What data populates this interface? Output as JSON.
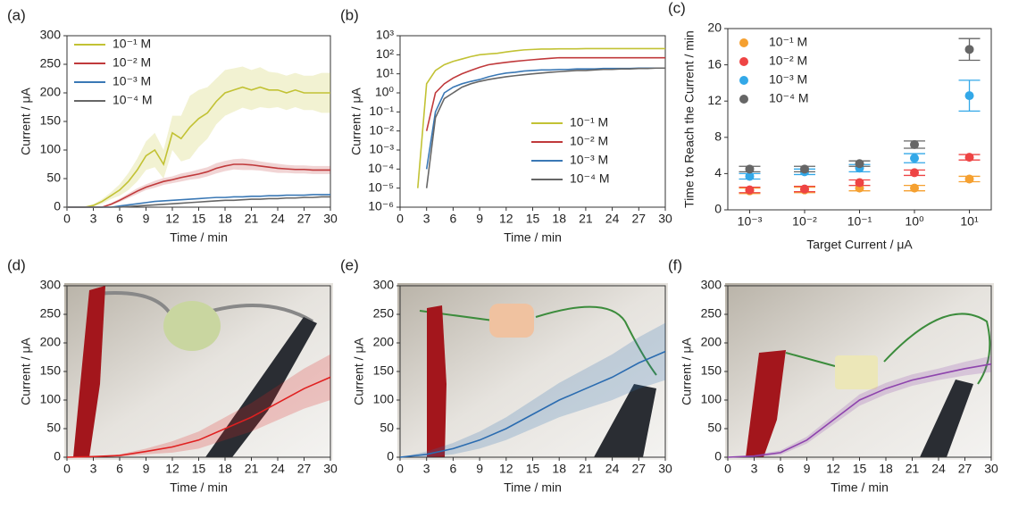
{
  "chart_data": [
    {
      "type": "line",
      "panel": "(a)",
      "xlabel": "Time / min",
      "ylabel": "Current / μA",
      "legend": "upper left",
      "xlim": [
        0,
        30
      ],
      "xticks": [
        0,
        3,
        6,
        9,
        12,
        15,
        18,
        21,
        24,
        27,
        30
      ],
      "ylim": [
        0,
        300
      ],
      "yticks": [
        0,
        50,
        100,
        150,
        200,
        250,
        300
      ],
      "x": [
        0,
        1,
        2,
        3,
        4,
        5,
        6,
        7,
        8,
        9,
        10,
        11,
        12,
        13,
        14,
        15,
        16,
        17,
        18,
        19,
        20,
        21,
        22,
        23,
        24,
        25,
        26,
        27,
        28,
        29,
        30
      ],
      "series": [
        {
          "name": "10⁻¹ M",
          "color": "#c2c234",
          "values": [
            0,
            0,
            0,
            3,
            10,
            20,
            30,
            45,
            65,
            90,
            100,
            75,
            130,
            120,
            140,
            155,
            165,
            185,
            200,
            205,
            210,
            205,
            210,
            205,
            205,
            200,
            205,
            200,
            200,
            200,
            200
          ],
          "errors": [
            0,
            0,
            0,
            2,
            4,
            6,
            10,
            15,
            20,
            25,
            30,
            25,
            30,
            40,
            55,
            50,
            45,
            40,
            40,
            38,
            36,
            35,
            35,
            32,
            30,
            30,
            30,
            30,
            30,
            35,
            35
          ]
        },
        {
          "name": "10⁻² M",
          "color": "#c0393b",
          "values": [
            0,
            0,
            0,
            0,
            0,
            5,
            12,
            20,
            28,
            35,
            40,
            45,
            48,
            52,
            55,
            58,
            62,
            68,
            72,
            75,
            75,
            74,
            72,
            70,
            68,
            67,
            66,
            66,
            65,
            65,
            65
          ],
          "errors": [
            0,
            0,
            0,
            0,
            0,
            2,
            3,
            4,
            5,
            5,
            6,
            6,
            6,
            7,
            7,
            8,
            8,
            9,
            9,
            9,
            10,
            9,
            8,
            8,
            8,
            7,
            7,
            7,
            7,
            7,
            7
          ]
        },
        {
          "name": "10⁻³ M",
          "color": "#3a78b5",
          "values": [
            0,
            0,
            0,
            0,
            0,
            0,
            2,
            4,
            6,
            8,
            10,
            11,
            12,
            13,
            14,
            15,
            16,
            17,
            17,
            18,
            18,
            19,
            19,
            20,
            20,
            21,
            21,
            21,
            22,
            22,
            22
          ]
        },
        {
          "name": "10⁻⁴ M",
          "color": "#666666",
          "values": [
            0,
            0,
            0,
            0,
            0,
            0,
            0,
            1,
            2,
            3,
            4,
            5,
            6,
            7,
            8,
            9,
            10,
            11,
            12,
            12,
            13,
            14,
            14,
            15,
            15,
            16,
            16,
            17,
            17,
            18,
            18
          ]
        }
      ]
    },
    {
      "type": "line",
      "panel": "(b)",
      "xlabel": "Time / min",
      "ylabel": "Current / μA",
      "legend": "lower right",
      "ylog": true,
      "xlim": [
        0,
        30
      ],
      "xticks": [
        0,
        3,
        6,
        9,
        12,
        15,
        18,
        21,
        24,
        27,
        30
      ],
      "ylim": [
        1e-06,
        1000
      ],
      "yticks": [
        {
          "value": 1e-06,
          "label": "10⁻⁶"
        },
        {
          "value": 1e-05,
          "label": "10⁻⁵"
        },
        {
          "value": 0.0001,
          "label": "10⁻⁴"
        },
        {
          "value": 0.001,
          "label": "10⁻³"
        },
        {
          "value": 0.01,
          "label": "10⁻²"
        },
        {
          "value": 0.1,
          "label": "10⁻¹"
        },
        {
          "value": 1,
          "label": "10⁰"
        },
        {
          "value": 10,
          "label": "10¹"
        },
        {
          "value": 100,
          "label": "10²"
        },
        {
          "value": 1000,
          "label": "10³"
        }
      ],
      "x": [
        0,
        1,
        2,
        3,
        4,
        5,
        6,
        7,
        8,
        9,
        10,
        11,
        12,
        13,
        14,
        15,
        16,
        17,
        18,
        19,
        20,
        21,
        22,
        23,
        24,
        25,
        26,
        27,
        28,
        29,
        30
      ],
      "series": [
        {
          "name": "10⁻¹ M",
          "color": "#c2c234",
          "values": [
            null,
            null,
            1e-05,
            3,
            15,
            30,
            45,
            60,
            80,
            100,
            110,
            120,
            140,
            160,
            180,
            190,
            200,
            200,
            205,
            205,
            205,
            210,
            210,
            210,
            210,
            210,
            210,
            210,
            210,
            210,
            210
          ]
        },
        {
          "name": "10⁻² M",
          "color": "#c0393b",
          "values": [
            null,
            null,
            null,
            0.01,
            1,
            3,
            6,
            10,
            15,
            22,
            30,
            35,
            40,
            45,
            50,
            55,
            60,
            65,
            70,
            70,
            70,
            70,
            70,
            70,
            70,
            70,
            70,
            70,
            70,
            70,
            70
          ]
        },
        {
          "name": "10⁻³ M",
          "color": "#3a78b5",
          "values": [
            null,
            null,
            null,
            0.0001,
            0.1,
            1,
            2,
            3,
            4,
            5,
            7,
            9,
            11,
            12,
            14,
            15,
            16,
            16,
            17,
            17,
            18,
            18,
            18,
            19,
            19,
            19,
            19,
            20,
            20,
            20,
            20
          ]
        },
        {
          "name": "10⁻⁴ M",
          "color": "#666666",
          "values": [
            null,
            null,
            null,
            1e-05,
            0.05,
            0.5,
            1,
            2,
            3,
            4,
            5,
            6,
            7,
            8,
            9,
            10,
            11,
            12,
            13,
            14,
            15,
            15,
            16,
            17,
            17,
            18,
            18,
            19,
            19,
            20,
            20
          ]
        }
      ]
    },
    {
      "type": "scatter",
      "panel": "(c)",
      "xlabel": "Target Current / μA",
      "ylabel": "Time to Reach the Current / min",
      "legend": "upper left",
      "xlog": true,
      "xlim": [
        0.0004,
        25
      ],
      "xticks": [
        {
          "value": 0.001,
          "label": "10⁻³"
        },
        {
          "value": 0.01,
          "label": "10⁻²"
        },
        {
          "value": 0.1,
          "label": "10⁻¹"
        },
        {
          "value": 1,
          "label": "10⁰"
        },
        {
          "value": 10,
          "label": "10¹"
        }
      ],
      "ylim": [
        0,
        20
      ],
      "yticks": [
        0,
        4,
        8,
        12,
        16,
        20
      ],
      "x": [
        0.001,
        0.01,
        0.1,
        1,
        10
      ],
      "series": [
        {
          "name": "10⁻¹ M",
          "color": "#f5a030",
          "values": [
            2.1,
            2.2,
            2.4,
            2.4,
            3.4
          ],
          "errors": [
            0.3,
            0.3,
            0.3,
            0.3,
            0.3
          ]
        },
        {
          "name": "10⁻² M",
          "color": "#ee4444",
          "values": [
            2.2,
            2.3,
            3.0,
            4.1,
            5.8
          ],
          "errors": [
            0.3,
            0.3,
            0.3,
            0.3,
            0.3
          ]
        },
        {
          "name": "10⁻³ M",
          "color": "#33a8e8",
          "values": [
            3.7,
            4.2,
            4.6,
            5.7,
            12.6
          ],
          "errors": [
            0.3,
            0.3,
            0.4,
            0.5,
            1.7
          ]
        },
        {
          "name": "10⁻⁴ M",
          "color": "#666666",
          "values": [
            4.5,
            4.5,
            5.1,
            7.2,
            17.7
          ],
          "errors": [
            0.3,
            0.3,
            0.3,
            0.4,
            1.2
          ]
        }
      ]
    },
    {
      "type": "line",
      "panel": "(d)",
      "xlabel": "Time / min",
      "ylabel": "Current / μA",
      "xlim": [
        0,
        30
      ],
      "xticks": [
        0,
        3,
        6,
        9,
        12,
        15,
        18,
        21,
        24,
        27,
        30
      ],
      "ylim": [
        0,
        300
      ],
      "yticks": [
        0,
        50,
        100,
        150,
        200,
        250,
        300
      ],
      "x": [
        0,
        3,
        6,
        9,
        12,
        15,
        18,
        21,
        24,
        27,
        30
      ],
      "series": [
        {
          "color": "#e02020",
          "values": [
            0,
            1,
            3,
            10,
            18,
            30,
            50,
            70,
            95,
            120,
            140
          ],
          "errors": [
            0,
            0,
            2,
            5,
            10,
            15,
            20,
            25,
            30,
            35,
            40
          ]
        }
      ]
    },
    {
      "type": "line",
      "panel": "(e)",
      "xlabel": "Time / min",
      "ylabel": "Current / μA",
      "xlim": [
        0,
        30
      ],
      "xticks": [
        0,
        3,
        6,
        9,
        12,
        15,
        18,
        21,
        24,
        27,
        30
      ],
      "ylim": [
        0,
        300
      ],
      "yticks": [
        0,
        50,
        100,
        150,
        200,
        250,
        300
      ],
      "x": [
        0,
        3,
        6,
        9,
        12,
        15,
        18,
        21,
        24,
        27,
        30
      ],
      "series": [
        {
          "color": "#2b6cb0",
          "values": [
            0,
            5,
            15,
            30,
            50,
            75,
            100,
            120,
            140,
            165,
            185
          ],
          "errors": [
            0,
            5,
            10,
            15,
            20,
            25,
            30,
            35,
            40,
            45,
            50
          ]
        }
      ]
    },
    {
      "type": "line",
      "panel": "(f)",
      "xlabel": "Time / min",
      "ylabel": "Current / μA",
      "xlim": [
        0,
        30
      ],
      "xticks": [
        0,
        3,
        6,
        9,
        12,
        15,
        18,
        21,
        24,
        27,
        30
      ],
      "ylim": [
        0,
        300
      ],
      "yticks": [
        0,
        50,
        100,
        150,
        200,
        250,
        300
      ],
      "x": [
        0,
        3,
        6,
        9,
        12,
        15,
        18,
        21,
        24,
        27,
        30
      ],
      "series": [
        {
          "color": "#8e44ad",
          "values": [
            0,
            2,
            8,
            30,
            65,
            100,
            120,
            135,
            145,
            155,
            163
          ],
          "errors": [
            0,
            2,
            4,
            6,
            8,
            10,
            10,
            10,
            10,
            12,
            14
          ]
        }
      ]
    }
  ]
}
